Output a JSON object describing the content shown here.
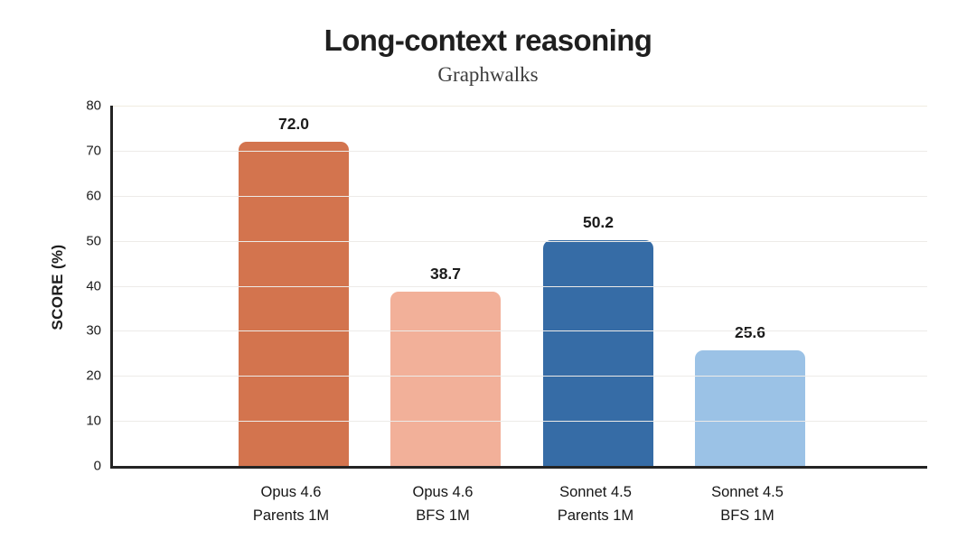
{
  "chart_data": {
    "type": "bar",
    "title": "Long-context reasoning",
    "subtitle": "Graphwalks",
    "ylabel": "SCORE (%)",
    "xlabel": "",
    "ylim": [
      0,
      80
    ],
    "yticks": [
      0,
      10,
      20,
      30,
      40,
      50,
      60,
      70,
      80
    ],
    "grid": true,
    "legend": "none",
    "categories": [
      {
        "line1": "Opus 4.6",
        "line2": "Parents 1M"
      },
      {
        "line1": "Opus 4.6",
        "line2": "BFS 1M"
      },
      {
        "line1": "Sonnet 4.5",
        "line2": "Parents 1M"
      },
      {
        "line1": "Sonnet 4.5",
        "line2": "BFS 1M"
      }
    ],
    "values": [
      72.0,
      38.7,
      50.2,
      25.6
    ],
    "value_labels": [
      "72.0",
      "38.7",
      "50.2",
      "25.6"
    ],
    "bar_colors": [
      "#d3744e",
      "#f2b099",
      "#366ca6",
      "#9bc2e6"
    ],
    "colors": {
      "axis": "#242424",
      "gridline": "#edebe8",
      "title_text": "#1f1f1f",
      "subtitle_text": "#3d3d3d",
      "label_text": "#161616"
    }
  }
}
